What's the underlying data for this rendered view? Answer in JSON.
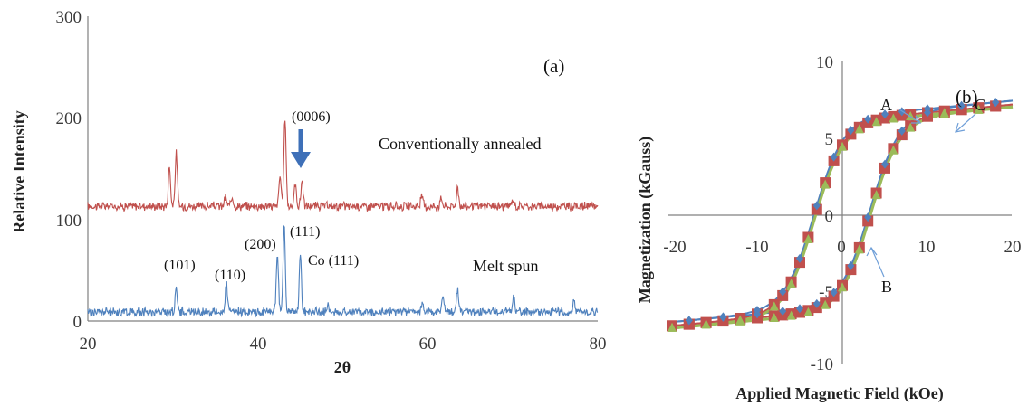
{
  "chart_data": [
    {
      "type": "line",
      "panel_label": "(a)",
      "xlabel": "2θ",
      "ylabel": "Relative Intensity",
      "xlim": [
        20,
        80
      ],
      "ylim": [
        0,
        300
      ],
      "xticks": [
        "20",
        "40",
        "60",
        "80"
      ],
      "yticks": [
        "0",
        "100",
        "200",
        "300"
      ],
      "series": [
        {
          "name": "Conventionally annealed",
          "color": "#c0504d",
          "baseline": 113,
          "peaks": [
            [
              29.6,
              40
            ],
            [
              30.4,
              52
            ],
            [
              36.2,
              9
            ],
            [
              37.0,
              10
            ],
            [
              42.6,
              30
            ],
            [
              43.2,
              88
            ],
            [
              44.4,
              22
            ],
            [
              45.2,
              26
            ],
            [
              59.3,
              10
            ],
            [
              61.6,
              8
            ],
            [
              63.5,
              18
            ],
            [
              70.0,
              6
            ]
          ]
        },
        {
          "name": "Melt spun",
          "color": "#4f81bd",
          "baseline": 9,
          "peaks": [
            [
              30.4,
              25
            ],
            [
              36.3,
              27
            ],
            [
              42.3,
              58
            ],
            [
              43.1,
              85
            ],
            [
              45.0,
              55
            ],
            [
              48.2,
              6
            ],
            [
              59.4,
              8
            ],
            [
              61.8,
              17
            ],
            [
              63.5,
              22
            ],
            [
              70.1,
              14
            ],
            [
              77.2,
              12
            ]
          ]
        }
      ],
      "annotations": [
        "(0006)",
        "(101)",
        "(110)",
        "(200)",
        "(111)",
        "Co (111)",
        "Conventionally annealed",
        "Melt spun"
      ]
    },
    {
      "type": "scatter",
      "panel_label": "(b)",
      "xlabel": "Applied Magnetic Field (kOe)",
      "ylabel": "Magnetization (kGauss)",
      "xlim": [
        -20,
        20
      ],
      "ylim": [
        -10,
        10
      ],
      "xticks": [
        "-20",
        "-10",
        "0",
        "10",
        "20"
      ],
      "yticks": [
        "-10",
        "-5",
        "0",
        "5",
        "10"
      ],
      "loop": {
        "Ms": 6.2,
        "Mr": 4.6,
        "Hc": 3.3,
        "slope": 0.052
      },
      "series": [
        {
          "name": "A",
          "color": "#c0504d",
          "marker": "square"
        },
        {
          "name": "B",
          "color": "#4f81bd",
          "marker": "diamond"
        },
        {
          "name": "C",
          "color": "#9bbb59",
          "marker": "triangle"
        }
      ],
      "annotations": [
        "A",
        "B",
        "C"
      ]
    }
  ]
}
